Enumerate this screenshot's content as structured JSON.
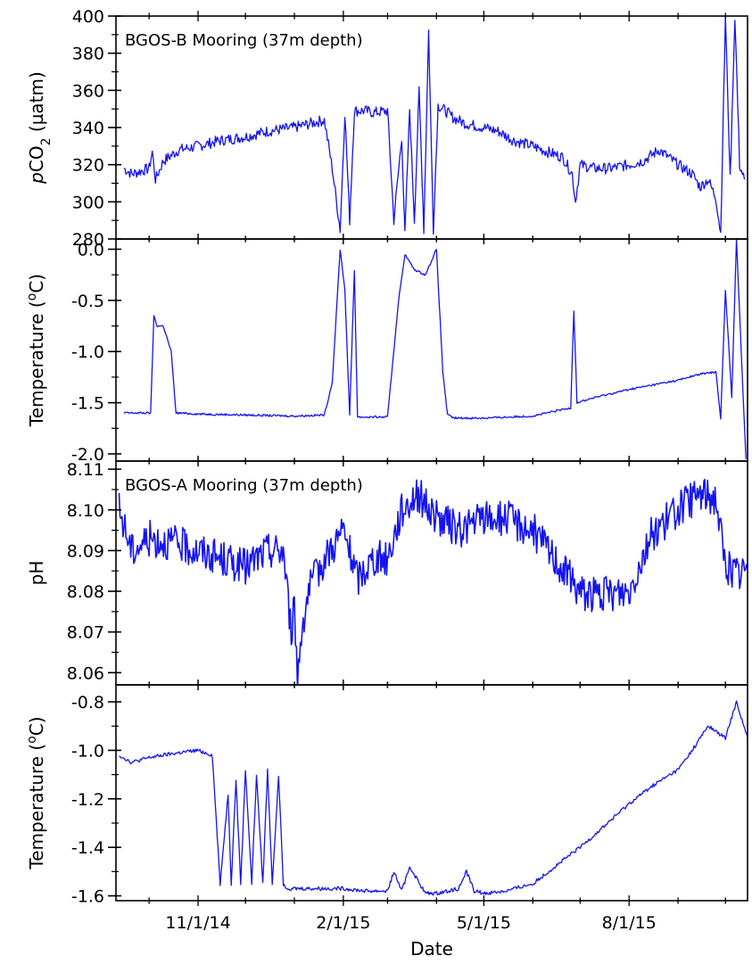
{
  "xlabel": "Date",
  "x_tick_labels": [
    "11/1/14",
    "2/1/15",
    "5/1/15",
    "8/1/15"
  ],
  "x_range": [
    "2014-09-10",
    "2015-10-15"
  ],
  "series_color": "#1414f0",
  "chart_data": [
    {
      "type": "line",
      "title": "",
      "annotation": "BGOS-B Mooring (37m depth)",
      "ylabel": {
        "prefix": "p",
        "main": "CO",
        "sub": "2",
        "unit": " (µatm)"
      },
      "ylim": [
        280,
        400
      ],
      "yticks": [
        280,
        300,
        320,
        340,
        360,
        380,
        400
      ],
      "ytick_labels": [
        "280",
        "300",
        "320",
        "340",
        "360",
        "380",
        "400"
      ],
      "x": [
        "2014-09-15",
        "2014-09-20",
        "2014-10-01",
        "2014-10-03",
        "2014-10-05",
        "2014-10-10",
        "2014-10-20",
        "2014-11-01",
        "2014-11-15",
        "2014-12-01",
        "2014-12-15",
        "2015-01-01",
        "2015-01-15",
        "2015-01-20",
        "2015-01-25",
        "2015-01-30",
        "2015-02-02",
        "2015-02-05",
        "2015-02-08",
        "2015-02-12",
        "2015-02-15",
        "2015-02-20",
        "2015-03-01",
        "2015-03-05",
        "2015-03-10",
        "2015-03-12",
        "2015-03-15",
        "2015-03-18",
        "2015-03-21",
        "2015-03-24",
        "2015-03-27",
        "2015-03-30",
        "2015-04-02",
        "2015-04-05",
        "2015-04-08",
        "2015-04-12",
        "2015-04-20",
        "2015-05-01",
        "2015-05-10",
        "2015-05-20",
        "2015-06-01",
        "2015-06-10",
        "2015-06-20",
        "2015-06-26",
        "2015-06-28",
        "2015-07-01",
        "2015-07-10",
        "2015-07-20",
        "2015-08-01",
        "2015-08-10",
        "2015-08-20",
        "2015-09-01",
        "2015-09-10",
        "2015-09-15",
        "2015-09-20",
        "2015-09-25",
        "2015-09-28",
        "2015-10-01",
        "2015-10-04",
        "2015-10-07",
        "2015-10-10",
        "2015-10-13"
      ],
      "values": [
        318,
        315,
        318,
        327,
        312,
        322,
        328,
        330,
        333,
        335,
        338,
        340,
        343,
        344,
        318,
        285,
        348,
        290,
        349,
        349,
        349,
        348,
        349,
        290,
        335,
        282,
        350,
        290,
        360,
        285,
        392,
        285,
        352,
        350,
        348,
        345,
        342,
        340,
        338,
        333,
        330,
        327,
        324,
        315,
        300,
        320,
        318,
        318,
        320,
        322,
        328,
        320,
        315,
        308,
        312,
        302,
        283,
        400,
        312,
        400,
        320,
        312
      ]
    },
    {
      "type": "line",
      "title": "",
      "annotation": "",
      "ylabel": {
        "prefix": "",
        "main": "Temperature (",
        "sup": "o",
        "unit": "C)"
      },
      "ylim": [
        -2.07,
        0.1
      ],
      "yticks": [
        -2.0,
        -1.5,
        -1.0,
        -0.5,
        0.0
      ],
      "ytick_labels": [
        "-2.0",
        "-1.5",
        "-1.0",
        "-0.5",
        "0.0"
      ],
      "x": [
        "2014-09-15",
        "2014-09-25",
        "2014-10-02",
        "2014-10-04",
        "2014-10-06",
        "2014-10-10",
        "2014-10-15",
        "2014-10-18",
        "2014-11-01",
        "2014-12-01",
        "2015-01-01",
        "2015-01-20",
        "2015-01-25",
        "2015-01-30",
        "2015-02-02",
        "2015-02-05",
        "2015-02-08",
        "2015-02-10",
        "2015-02-15",
        "2015-03-01",
        "2015-03-08",
        "2015-03-12",
        "2015-03-18",
        "2015-03-25",
        "2015-04-01",
        "2015-04-05",
        "2015-04-08",
        "2015-04-12",
        "2015-05-01",
        "2015-06-01",
        "2015-06-25",
        "2015-06-27",
        "2015-06-29",
        "2015-07-10",
        "2015-08-01",
        "2015-09-01",
        "2015-09-15",
        "2015-09-25",
        "2015-09-28",
        "2015-10-01",
        "2015-10-05",
        "2015-10-08",
        "2015-10-11",
        "2015-10-14"
      ],
      "values": [
        -1.6,
        -1.6,
        -1.6,
        -0.65,
        -0.75,
        -0.75,
        -1.0,
        -1.6,
        -1.61,
        -1.62,
        -1.63,
        -1.62,
        -1.3,
        0.0,
        -0.4,
        -1.63,
        -0.2,
        -1.64,
        -1.64,
        -1.64,
        -0.5,
        -0.05,
        -0.2,
        -0.25,
        0.0,
        -1.2,
        -1.62,
        -1.65,
        -1.65,
        -1.63,
        -1.55,
        -0.6,
        -1.5,
        -1.45,
        -1.37,
        -1.28,
        -1.22,
        -1.2,
        -1.65,
        -0.4,
        -1.45,
        0.1,
        -1.0,
        -2.05
      ]
    },
    {
      "type": "line",
      "title": "",
      "annotation": "BGOS-A Mooring (37m depth)",
      "ylabel": {
        "prefix": "",
        "main": "pH",
        "unit": ""
      },
      "ylim": [
        8.057,
        8.112
      ],
      "yticks": [
        8.06,
        8.07,
        8.08,
        8.09,
        8.1,
        8.11
      ],
      "ytick_labels": [
        "8.06",
        "8.07",
        "8.08",
        "8.09",
        "8.10",
        "8.11"
      ],
      "x": [
        "2014-09-12",
        "2014-09-20",
        "2014-10-01",
        "2014-10-15",
        "2014-11-01",
        "2014-11-15",
        "2014-12-01",
        "2014-12-15",
        "2014-12-25",
        "2014-12-30",
        "2015-01-01",
        "2015-01-03",
        "2015-01-06",
        "2015-01-10",
        "2015-01-20",
        "2015-02-01",
        "2015-02-10",
        "2015-02-20",
        "2015-03-01",
        "2015-03-10",
        "2015-03-20",
        "2015-04-01",
        "2015-04-15",
        "2015-05-01",
        "2015-05-15",
        "2015-06-01",
        "2015-06-15",
        "2015-07-01",
        "2015-07-15",
        "2015-08-01",
        "2015-08-15",
        "2015-09-01",
        "2015-09-15",
        "2015-09-25",
        "2015-10-01",
        "2015-10-10",
        "2015-10-15"
      ],
      "values": [
        8.1,
        8.09,
        8.093,
        8.092,
        8.09,
        8.088,
        8.086,
        8.09,
        8.09,
        8.07,
        8.076,
        8.059,
        8.072,
        8.08,
        8.088,
        8.095,
        8.083,
        8.088,
        8.088,
        8.1,
        8.104,
        8.098,
        8.095,
        8.098,
        8.098,
        8.095,
        8.088,
        8.08,
        8.079,
        8.08,
        8.094,
        8.1,
        8.104,
        8.103,
        8.086,
        8.084,
        8.086
      ]
    },
    {
      "type": "line",
      "title": "",
      "annotation": "",
      "ylabel": {
        "prefix": "",
        "main": "Temperature (",
        "sup": "o",
        "unit": "C)"
      },
      "ylim": [
        -1.62,
        -0.73
      ],
      "yticks": [
        -1.6,
        -1.4,
        -1.2,
        -1.0,
        -0.8
      ],
      "ytick_labels": [
        "-1.6",
        "-1.4",
        "-1.2",
        "-1.0",
        "-0.8"
      ],
      "x": [
        "2014-09-12",
        "2014-09-20",
        "2014-10-01",
        "2014-10-10",
        "2014-10-20",
        "2014-11-01",
        "2014-11-10",
        "2014-11-15",
        "2014-11-20",
        "2014-11-22",
        "2014-11-25",
        "2014-11-28",
        "2014-12-01",
        "2014-12-05",
        "2014-12-08",
        "2014-12-12",
        "2014-12-15",
        "2014-12-18",
        "2014-12-22",
        "2014-12-25",
        "2014-12-28",
        "2015-01-01",
        "2015-01-15",
        "2015-02-01",
        "2015-02-15",
        "2015-03-01",
        "2015-03-05",
        "2015-03-10",
        "2015-03-15",
        "2015-03-25",
        "2015-04-01",
        "2015-04-15",
        "2015-04-20",
        "2015-04-25",
        "2015-05-01",
        "2015-05-15",
        "2015-06-01",
        "2015-06-15",
        "2015-07-01",
        "2015-07-15",
        "2015-08-01",
        "2015-08-15",
        "2015-09-01",
        "2015-09-10",
        "2015-09-20",
        "2015-10-01",
        "2015-10-08",
        "2015-10-15"
      ],
      "values": [
        -1.02,
        -1.05,
        -1.03,
        -1.02,
        -1.01,
        -1.0,
        -1.02,
        -1.55,
        -1.18,
        -1.55,
        -1.12,
        -1.55,
        -1.08,
        -1.55,
        -1.1,
        -1.55,
        -1.08,
        -1.55,
        -1.1,
        -1.55,
        -1.57,
        -1.57,
        -1.57,
        -1.57,
        -1.58,
        -1.58,
        -1.5,
        -1.58,
        -1.48,
        -1.59,
        -1.59,
        -1.57,
        -1.5,
        -1.58,
        -1.59,
        -1.58,
        -1.55,
        -1.48,
        -1.4,
        -1.32,
        -1.22,
        -1.15,
        -1.08,
        -1.0,
        -0.9,
        -0.95,
        -0.8,
        -0.95
      ]
    }
  ]
}
